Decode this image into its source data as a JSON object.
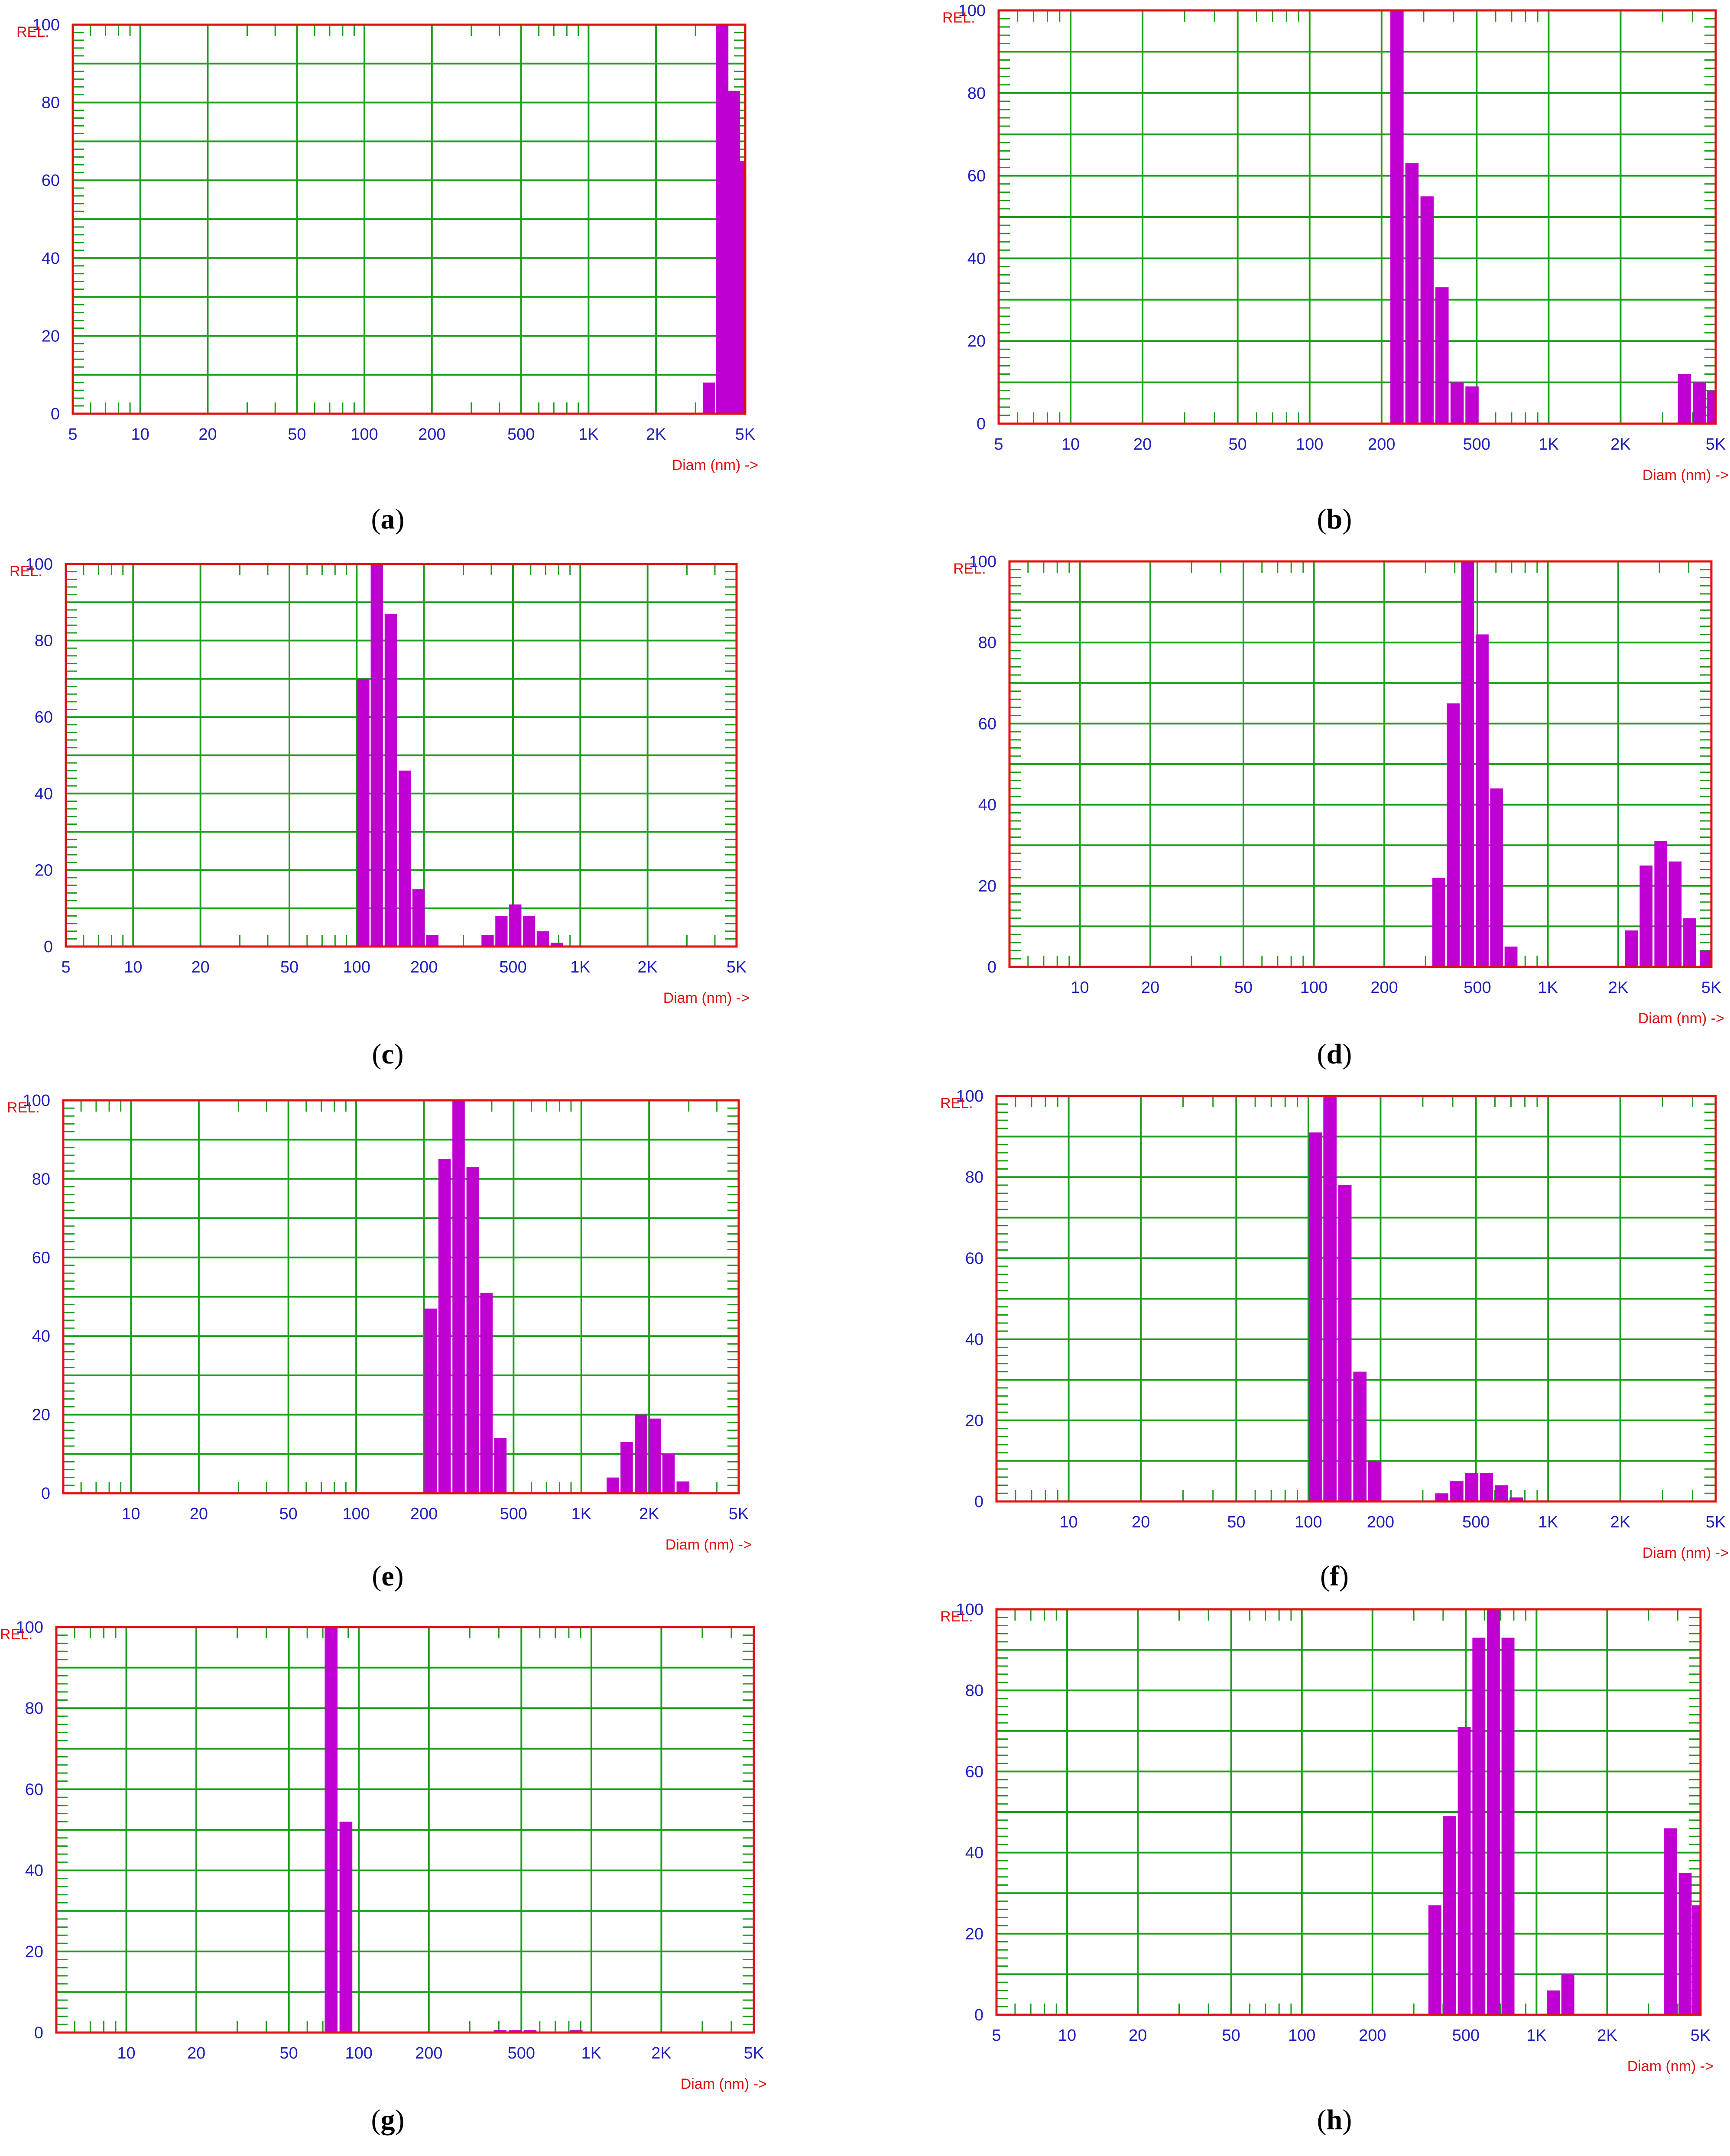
{
  "chart_data": [
    {
      "id": "a",
      "type": "bar",
      "caption": "a",
      "ylabel": "REL.",
      "xlabel": "Diam (nm) ->",
      "xscale": "log",
      "xlim": [
        5,
        5000
      ],
      "ylim": [
        0,
        100
      ],
      "x_ticks": [
        "5",
        "10",
        "20",
        "50",
        "100",
        "200",
        "500",
        "1K",
        "2K",
        "5K"
      ],
      "y_ticks": [
        "0",
        "20",
        "40",
        "60",
        "80",
        "100"
      ],
      "bars": [
        {
          "x": 3450,
          "value": 8
        },
        {
          "x": 3950,
          "value": 100
        },
        {
          "x": 4450,
          "value": 83
        },
        {
          "x": 4900,
          "value": 65
        }
      ]
    },
    {
      "id": "b",
      "type": "bar",
      "caption": "b",
      "ylabel": "REL.",
      "xlabel": "Diam (nm) ->",
      "xscale": "log",
      "xlim": [
        5,
        5000
      ],
      "ylim": [
        0,
        100
      ],
      "x_ticks": [
        "5",
        "10",
        "20",
        "50",
        "100",
        "200",
        "500",
        "1K",
        "2K",
        "5K"
      ],
      "y_ticks": [
        "0",
        "20",
        "40",
        "60",
        "80",
        "100"
      ],
      "bars": [
        {
          "x": 232,
          "value": 100
        },
        {
          "x": 268,
          "value": 63
        },
        {
          "x": 310,
          "value": 55
        },
        {
          "x": 358,
          "value": 33
        },
        {
          "x": 414,
          "value": 10
        },
        {
          "x": 478,
          "value": 9
        },
        {
          "x": 3700,
          "value": 12
        },
        {
          "x": 4270,
          "value": 10
        },
        {
          "x": 4900,
          "value": 8
        }
      ]
    },
    {
      "id": "c",
      "type": "bar",
      "caption": "c",
      "ylabel": "REL.",
      "xlabel": "Diam (nm) ->",
      "xscale": "log",
      "xlim": [
        5,
        5000
      ],
      "ylim": [
        0,
        100
      ],
      "x_ticks": [
        "5",
        "10",
        "20",
        "50",
        "100",
        "200",
        "500",
        "1K",
        "2K",
        "5K"
      ],
      "y_ticks": [
        "0",
        "20",
        "40",
        "60",
        "80",
        "100"
      ],
      "bars": [
        {
          "x": 107,
          "value": 70
        },
        {
          "x": 123,
          "value": 100
        },
        {
          "x": 142,
          "value": 87
        },
        {
          "x": 164,
          "value": 46
        },
        {
          "x": 189,
          "value": 15
        },
        {
          "x": 218,
          "value": 3
        },
        {
          "x": 385,
          "value": 3
        },
        {
          "x": 444,
          "value": 8
        },
        {
          "x": 512,
          "value": 11
        },
        {
          "x": 590,
          "value": 8
        },
        {
          "x": 680,
          "value": 4
        },
        {
          "x": 785,
          "value": 1
        }
      ]
    },
    {
      "id": "d",
      "type": "bar",
      "caption": "d",
      "ylabel": "REL.",
      "xlabel": "Diam (nm) ->",
      "xscale": "log",
      "xlim": [
        5,
        5000
      ],
      "ylim": [
        0,
        100
      ],
      "x_ticks": [
        "10",
        "20",
        "50",
        "100",
        "200",
        "500",
        "1K",
        "2K",
        "5K"
      ],
      "y_ticks": [
        "0",
        "20",
        "40",
        "60",
        "80",
        "100"
      ],
      "bars": [
        {
          "x": 342,
          "value": 22
        },
        {
          "x": 394,
          "value": 65
        },
        {
          "x": 454,
          "value": 100
        },
        {
          "x": 524,
          "value": 82
        },
        {
          "x": 604,
          "value": 44
        },
        {
          "x": 696,
          "value": 5
        },
        {
          "x": 2280,
          "value": 9
        },
        {
          "x": 2630,
          "value": 25
        },
        {
          "x": 3040,
          "value": 31
        },
        {
          "x": 3500,
          "value": 26
        },
        {
          "x": 4040,
          "value": 12
        },
        {
          "x": 4750,
          "value": 4
        }
      ]
    },
    {
      "id": "e",
      "type": "bar",
      "caption": "e",
      "ylabel": "REL.",
      "xlabel": "Diam (nm) ->",
      "xscale": "log",
      "xlim": [
        5,
        5000
      ],
      "ylim": [
        0,
        100
      ],
      "x_ticks": [
        "10",
        "20",
        "50",
        "100",
        "200",
        "500",
        "1K",
        "2K",
        "5K"
      ],
      "y_ticks": [
        "0",
        "20",
        "40",
        "60",
        "80",
        "100"
      ],
      "bars": [
        {
          "x": 214,
          "value": 47
        },
        {
          "x": 247,
          "value": 85
        },
        {
          "x": 285,
          "value": 100
        },
        {
          "x": 329,
          "value": 83
        },
        {
          "x": 379,
          "value": 51
        },
        {
          "x": 437,
          "value": 14
        },
        {
          "x": 1380,
          "value": 4
        },
        {
          "x": 1590,
          "value": 13
        },
        {
          "x": 1840,
          "value": 20
        },
        {
          "x": 2120,
          "value": 19
        },
        {
          "x": 2440,
          "value": 10
        },
        {
          "x": 2820,
          "value": 3
        }
      ]
    },
    {
      "id": "f",
      "type": "bar",
      "caption": "f",
      "ylabel": "REL.",
      "xlabel": "Diam (nm) ->",
      "xscale": "log",
      "xlim": [
        5,
        5000
      ],
      "ylim": [
        0,
        100
      ],
      "x_ticks": [
        "10",
        "20",
        "50",
        "100",
        "200",
        "500",
        "1K",
        "2K",
        "5K"
      ],
      "y_ticks": [
        "0",
        "20",
        "40",
        "60",
        "80",
        "100"
      ],
      "bars": [
        {
          "x": 107,
          "value": 91
        },
        {
          "x": 123,
          "value": 100
        },
        {
          "x": 142,
          "value": 78
        },
        {
          "x": 164,
          "value": 32
        },
        {
          "x": 189,
          "value": 10
        },
        {
          "x": 360,
          "value": 2
        },
        {
          "x": 416,
          "value": 5
        },
        {
          "x": 480,
          "value": 7
        },
        {
          "x": 553,
          "value": 7
        },
        {
          "x": 638,
          "value": 4
        },
        {
          "x": 736,
          "value": 1
        }
      ]
    },
    {
      "id": "g",
      "type": "bar",
      "caption": "g",
      "ylabel": "REL.",
      "xlabel": "Diam (nm) ->",
      "xscale": "log",
      "xlim": [
        5,
        5000
      ],
      "ylim": [
        0,
        100
      ],
      "x_ticks": [
        "10",
        "20",
        "50",
        "100",
        "200",
        "500",
        "1K",
        "2K",
        "5K"
      ],
      "y_ticks": [
        "0",
        "20",
        "40",
        "60",
        "80",
        "100"
      ],
      "bars": [
        {
          "x": 76,
          "value": 100
        },
        {
          "x": 88,
          "value": 52
        },
        {
          "x": 405,
          "value": 0.6
        },
        {
          "x": 470,
          "value": 0.6
        },
        {
          "x": 545,
          "value": 0.6
        },
        {
          "x": 860,
          "value": 0.6
        }
      ]
    },
    {
      "id": "h",
      "type": "bar",
      "caption": "h",
      "ylabel": "REL.",
      "xlabel": "Diam (nm) ->",
      "xscale": "log",
      "xlim": [
        5,
        5000
      ],
      "ylim": [
        0,
        100
      ],
      "x_ticks": [
        "5",
        "10",
        "20",
        "50",
        "100",
        "200",
        "500",
        "1K",
        "2K",
        "5K"
      ],
      "y_ticks": [
        "0",
        "20",
        "40",
        "60",
        "80",
        "100"
      ],
      "bars": [
        {
          "x": 369,
          "value": 27
        },
        {
          "x": 426,
          "value": 49
        },
        {
          "x": 492,
          "value": 71
        },
        {
          "x": 568,
          "value": 93
        },
        {
          "x": 655,
          "value": 100
        },
        {
          "x": 756,
          "value": 93
        },
        {
          "x": 1180,
          "value": 6
        },
        {
          "x": 1360,
          "value": 10
        },
        {
          "x": 3730,
          "value": 46
        },
        {
          "x": 4300,
          "value": 35
        },
        {
          "x": 4900,
          "value": 27
        }
      ]
    }
  ],
  "colors": {
    "bar": "#c000d0",
    "frame": "#e01010",
    "grid": "#1a9e1a",
    "tick_label": "#1f1fbf",
    "axis_title": "#e01010"
  }
}
